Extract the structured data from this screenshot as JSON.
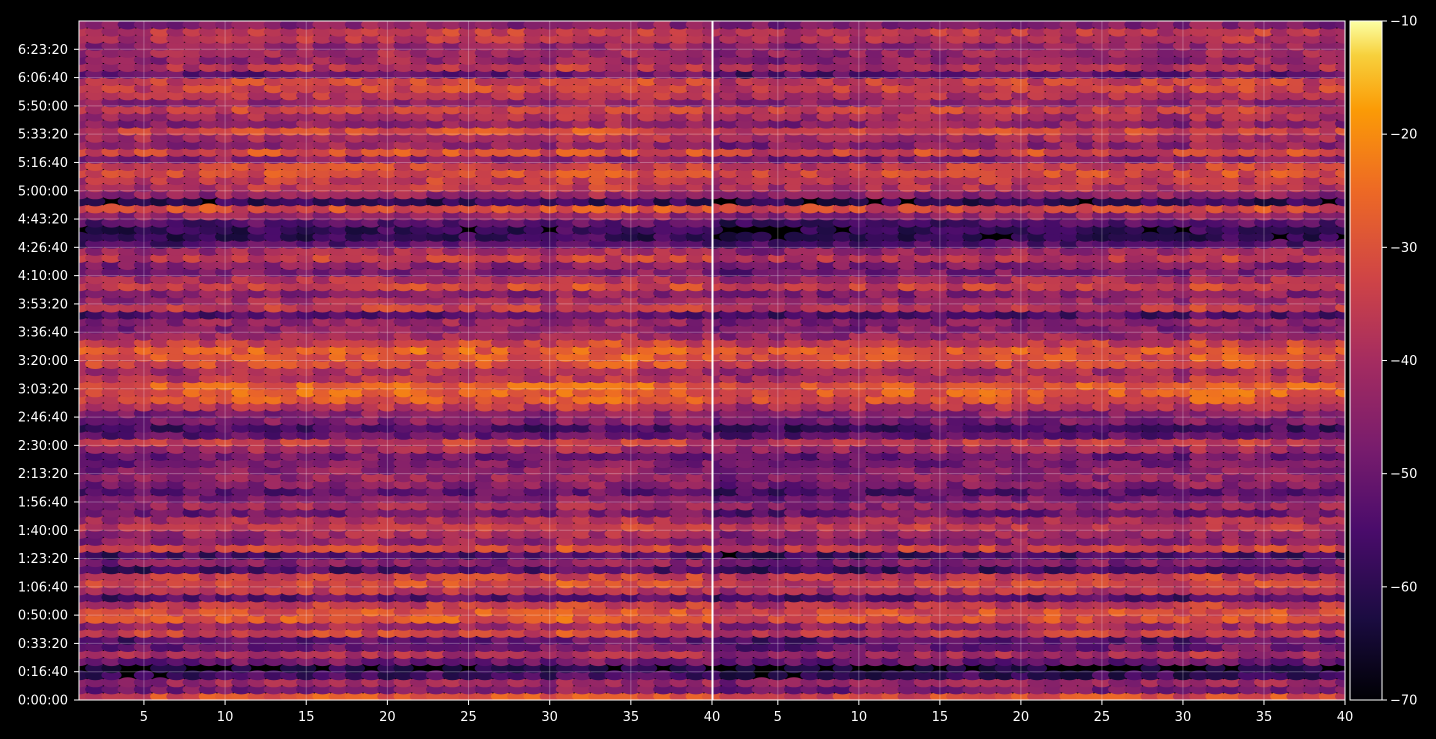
{
  "chart_data": {
    "type": "heatmap",
    "colormap": "inferno",
    "background": "#000000",
    "panels": [
      {
        "x_ticks": [
          "5",
          "10",
          "15",
          "20",
          "25",
          "30",
          "35",
          "40"
        ],
        "x_tick_values": [
          5,
          10,
          15,
          20,
          25,
          30,
          35,
          40
        ],
        "xlim": [
          1,
          40
        ]
      },
      {
        "x_ticks": [
          "5",
          "10",
          "15",
          "20",
          "25",
          "30",
          "35",
          "40"
        ],
        "x_tick_values": [
          5,
          10,
          15,
          20,
          25,
          30,
          35,
          40
        ],
        "xlim": [
          1,
          40
        ]
      }
    ],
    "y_ticks": [
      "0:00:00",
      "0:16:40",
      "0:33:20",
      "0:50:00",
      "1:06:40",
      "1:23:20",
      "1:40:00",
      "1:56:40",
      "2:13:20",
      "2:30:00",
      "2:46:40",
      "3:03:20",
      "3:20:00",
      "3:36:40",
      "3:53:20",
      "4:10:00",
      "4:26:40",
      "4:43:20",
      "5:00:00",
      "5:16:40",
      "5:33:20",
      "5:50:00",
      "6:06:40",
      "6:23:20"
    ],
    "y_tick_seconds": [
      0,
      1000,
      2000,
      3000,
      4000,
      5000,
      6000,
      7000,
      8000,
      9000,
      10000,
      11000,
      12000,
      13000,
      14000,
      15000,
      16000,
      17000,
      18000,
      19000,
      20000,
      21000,
      22000,
      23000
    ],
    "ylim": [
      0,
      24000
    ],
    "row_times_seconds": [
      0,
      250,
      500,
      750,
      1000,
      1250,
      1500,
      1750,
      2000,
      2250,
      2500,
      2750,
      3000,
      3250,
      3500,
      3750,
      4000,
      4250,
      4500,
      4750,
      5000,
      5250,
      5500,
      5750,
      6000,
      6250,
      6500,
      6750,
      7000,
      7250,
      7500,
      7750,
      8000,
      8250,
      8500,
      8750,
      9000,
      9250,
      9500,
      9750,
      10000,
      10250,
      10500,
      10750,
      11000,
      11250,
      11500,
      11750,
      12000,
      12250,
      12500,
      12750,
      13000,
      13250,
      13500,
      13750,
      14000,
      14250,
      14500,
      14750,
      15000,
      15250,
      15500,
      15750,
      16000,
      16250,
      16500,
      16750,
      17000,
      17250,
      17500,
      17750,
      18000,
      18250,
      18500,
      18750,
      19000,
      19250,
      19500,
      19750,
      20000,
      20250,
      20500,
      20750,
      21000,
      21250,
      21500,
      21750,
      22000,
      22250,
      22500,
      22750,
      23000,
      23250,
      23500,
      23750
    ],
    "row_levels_db": [
      -33,
      -50,
      -45,
      -60,
      -66,
      -52,
      -42,
      -52,
      -55,
      -36,
      -44,
      -32,
      -33,
      -38,
      -56,
      -40,
      -35,
      -37,
      -58,
      -48,
      -58,
      -36,
      -46,
      -44,
      -38,
      -42,
      -52,
      -44,
      -50,
      -55,
      -48,
      -46,
      -48,
      -50,
      -52,
      -44,
      -38,
      -54,
      -58,
      -50,
      -48,
      -40,
      -32,
      -30,
      -30,
      -40,
      -42,
      -34,
      -32,
      -30,
      -36,
      -44,
      -48,
      -46,
      -56,
      -38,
      -44,
      -48,
      -36,
      -42,
      -50,
      -48,
      -38,
      -44,
      -56,
      -62,
      -62,
      -56,
      -46,
      -34,
      -62,
      -46,
      -40,
      -38,
      -34,
      -36,
      -48,
      -34,
      -46,
      -42,
      -35,
      -46,
      -42,
      -36,
      -46,
      -40,
      -36,
      -36,
      -54,
      -40,
      -46,
      -44,
      -46,
      -40,
      -38,
      -48
    ],
    "colorbar": {
      "ticks": [
        "−10",
        "−20",
        "−30",
        "−40",
        "−50",
        "−60",
        "−70"
      ],
      "tick_values": [
        -10,
        -20,
        -30,
        -40,
        -50,
        -60,
        -70
      ],
      "range": [
        -70,
        -10
      ]
    },
    "grid": true,
    "legend": "none"
  }
}
